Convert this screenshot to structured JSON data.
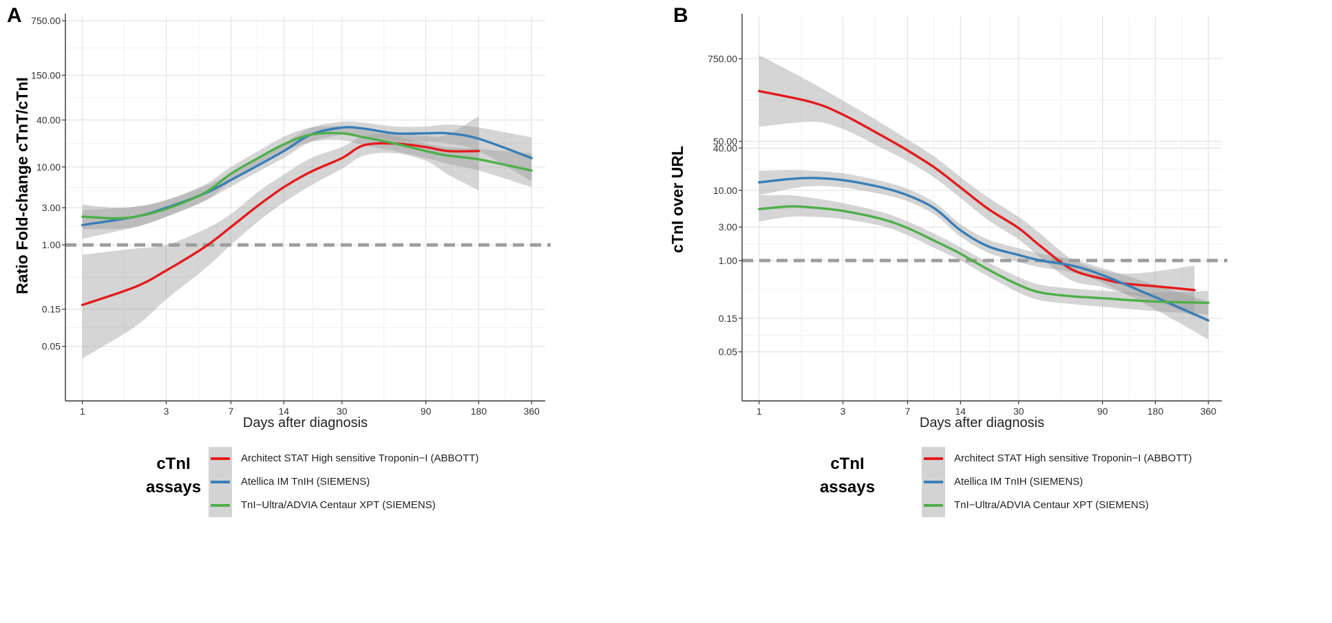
{
  "chart_data": [
    {
      "panel": "A",
      "type": "line",
      "ylabel": "Ratio Fold-change cTnT/cTnI",
      "xlabel": "Days after diagnosis",
      "x_scale": "log",
      "y_scale": "log",
      "x_ticks": [
        1,
        3,
        7,
        14,
        30,
        90,
        180,
        360
      ],
      "x_tick_labels": [
        "1",
        "3",
        "7",
        "14",
        "30",
        "90",
        "180",
        "360"
      ],
      "y_ticks": [
        0.05,
        0.15,
        1,
        3,
        10,
        40,
        150,
        750
      ],
      "y_tick_labels": [
        "0.05",
        "0.15",
        "1.00",
        "3.00",
        "10.00",
        "40.00",
        "150.00",
        "750.00"
      ],
      "xlim": [
        0.8,
        430
      ],
      "ylim": [
        0.01,
        850
      ],
      "reference_line": 1,
      "grid": true,
      "series": [
        {
          "name": "Architect STAT High sensitive Troponin−I (ABBOTT)",
          "color": "#e41a1c",
          "x": [
            1,
            2,
            3,
            5,
            7,
            10,
            14,
            20,
            30,
            40,
            60,
            90,
            120,
            180
          ],
          "y": [
            0.17,
            0.29,
            0.47,
            0.95,
            1.7,
            3.2,
            5.5,
            8.7,
            13,
            19,
            20,
            18,
            16,
            16
          ],
          "band": [
            [
              0.035,
              0.75
            ],
            [
              0.09,
              0.9
            ],
            [
              0.2,
              1.0
            ],
            [
              0.5,
              1.6
            ],
            [
              1.0,
              2.5
            ],
            [
              2.0,
              4.8
            ],
            [
              3.5,
              8.0
            ],
            [
              5.8,
              13
            ],
            [
              9.5,
              18
            ],
            [
              14,
              25
            ],
            [
              15,
              27
            ],
            [
              12,
              25
            ],
            [
              8,
              26
            ],
            [
              5,
              45
            ]
          ]
        },
        {
          "name": "Atellica IM TnIH (SIEMENS)",
          "color": "#377eb8",
          "x": [
            1,
            2,
            3,
            5,
            7,
            10,
            14,
            20,
            30,
            40,
            60,
            90,
            120,
            180,
            360
          ],
          "y": [
            1.8,
            2.3,
            3.0,
            4.6,
            6.8,
            10.5,
            16,
            26,
            32,
            31,
            27,
            27,
            27,
            23,
            13
          ],
          "band": [
            [
              1.2,
              2.8
            ],
            [
              1.7,
              3.1
            ],
            [
              2.3,
              3.8
            ],
            [
              3.7,
              5.7
            ],
            [
              5.6,
              8.3
            ],
            [
              8.7,
              13
            ],
            [
              13,
              20
            ],
            [
              21,
              32
            ],
            [
              26,
              38
            ],
            [
              25,
              37
            ],
            [
              22,
              33
            ],
            [
              21,
              33
            ],
            [
              20,
              35
            ],
            [
              16,
              32
            ],
            [
              6.5,
              24
            ]
          ]
        },
        {
          "name": "TnI−Ultra/ADVIA Centaur XPT (SIEMENS)",
          "color": "#4daf4a",
          "x": [
            1,
            1.5,
            2,
            3,
            5,
            7,
            10,
            14,
            20,
            30,
            40,
            60,
            90,
            120,
            180,
            360
          ],
          "y": [
            2.3,
            2.2,
            2.3,
            2.9,
            4.7,
            8.2,
            13,
            19.5,
            26,
            27,
            24,
            20,
            16,
            14,
            12.5,
            9
          ],
          "band": [
            [
              1.6,
              3.3
            ],
            [
              1.6,
              3.0
            ],
            [
              1.7,
              3.1
            ],
            [
              2.3,
              3.7
            ],
            [
              3.7,
              6.0
            ],
            [
              6.5,
              10
            ],
            [
              10.5,
              16
            ],
            [
              15.5,
              24.5
            ],
            [
              21,
              32
            ],
            [
              22,
              33
            ],
            [
              19,
              30
            ],
            [
              16,
              25
            ],
            [
              13,
              20
            ],
            [
              11,
              18
            ],
            [
              9,
              17
            ],
            [
              5.5,
              15
            ]
          ]
        }
      ]
    },
    {
      "panel": "B",
      "type": "line",
      "ylabel": "cTnI over URL",
      "xlabel": "Days after diagnosis",
      "x_scale": "log",
      "y_scale": "log",
      "x_ticks": [
        1,
        3,
        7,
        14,
        30,
        90,
        180,
        360
      ],
      "x_tick_labels": [
        "1",
        "3",
        "7",
        "14",
        "30",
        "90",
        "180",
        "360"
      ],
      "y_ticks": [
        0.05,
        0.15,
        1,
        3,
        10,
        40,
        50,
        750
      ],
      "y_tick_labels": [
        "0.05",
        "0.15",
        "1.00",
        "3.00",
        "10.00",
        "40.00",
        "50.00",
        "750.00"
      ],
      "xlim": [
        0.8,
        430
      ],
      "ylim": [
        0.01,
        3000
      ],
      "reference_line": 1,
      "grid": true,
      "series": [
        {
          "name": "Architect STAT High sensitive Troponin−I (ABBOTT)",
          "color": "#e41a1c",
          "x": [
            1,
            2,
            3,
            5,
            7,
            10,
            14,
            20,
            30,
            40,
            60,
            90,
            120,
            180,
            300
          ],
          "y": [
            260,
            180,
            120,
            60,
            37,
            21,
            11,
            5.5,
            2.9,
            1.6,
            0.75,
            0.55,
            0.47,
            0.43,
            0.38
          ],
          "band": [
            [
              80,
              850
            ],
            [
              95,
              340
            ],
            [
              75,
              190
            ],
            [
              40,
              90
            ],
            [
              26,
              53
            ],
            [
              15,
              30
            ],
            [
              7.8,
              15.5
            ],
            [
              3.8,
              8.0
            ],
            [
              2.0,
              4.2
            ],
            [
              1.1,
              2.4
            ],
            [
              0.52,
              1.05
            ],
            [
              0.42,
              0.72
            ],
            [
              0.34,
              0.65
            ],
            [
              0.27,
              0.7
            ],
            [
              0.16,
              0.85
            ]
          ]
        },
        {
          "name": "Atellica IM TnIH (SIEMENS)",
          "color": "#377eb8",
          "x": [
            1,
            1.5,
            2,
            3,
            5,
            7,
            10,
            14,
            20,
            30,
            40,
            60,
            90,
            180,
            360
          ],
          "y": [
            13,
            14.5,
            15,
            14,
            11,
            8.5,
            5.5,
            2.7,
            1.6,
            1.2,
            1.0,
            0.85,
            0.62,
            0.3,
            0.14
          ],
          "band": [
            [
              8.5,
              19
            ],
            [
              10.5,
              19.5
            ],
            [
              11.5,
              19
            ],
            [
              11,
              17.5
            ],
            [
              8.8,
              13.5
            ],
            [
              7,
              10.5
            ],
            [
              4.5,
              6.7
            ],
            [
              2.2,
              3.3
            ],
            [
              1.3,
              2.0
            ],
            [
              0.95,
              1.5
            ],
            [
              0.8,
              1.25
            ],
            [
              0.68,
              1.05
            ],
            [
              0.48,
              0.78
            ],
            [
              0.2,
              0.45
            ],
            [
              0.075,
              0.26
            ]
          ]
        },
        {
          "name": "TnI−Ultra/ADVIA Centaur XPT (SIEMENS)",
          "color": "#4daf4a",
          "x": [
            1,
            1.5,
            2,
            3,
            5,
            7,
            10,
            14,
            20,
            30,
            40,
            60,
            90,
            180,
            360
          ],
          "y": [
            5.4,
            5.9,
            5.7,
            5.1,
            3.9,
            2.9,
            1.9,
            1.25,
            0.75,
            0.45,
            0.35,
            0.31,
            0.29,
            0.26,
            0.25
          ],
          "band": [
            [
              3.6,
              8.5
            ],
            [
              4.2,
              8.5
            ],
            [
              4.2,
              7.8
            ],
            [
              3.9,
              6.6
            ],
            [
              3.1,
              4.9
            ],
            [
              2.3,
              3.6
            ],
            [
              1.5,
              2.4
            ],
            [
              1.0,
              1.55
            ],
            [
              0.6,
              0.95
            ],
            [
              0.35,
              0.58
            ],
            [
              0.27,
              0.45
            ],
            [
              0.24,
              0.4
            ],
            [
              0.22,
              0.37
            ],
            [
              0.19,
              0.35
            ],
            [
              0.17,
              0.37
            ]
          ]
        }
      ]
    }
  ],
  "panels": [
    {
      "letter": "A",
      "ylabel": "Ratio Fold-change cTnT/cTnI",
      "xlabel": "Days after diagnosis"
    },
    {
      "letter": "B",
      "ylabel": "cTnI over URL",
      "xlabel": "Days after diagnosis"
    }
  ],
  "legend": {
    "title_line1": "cTnI",
    "title_line2": "assays",
    "items": [
      {
        "label": "Architect STAT High sensitive Troponin−I (ABBOTT)",
        "color": "#e41a1c"
      },
      {
        "label": "Atellica IM TnIH (SIEMENS)",
        "color": "#377eb8"
      },
      {
        "label": "TnI−Ultra/ADVIA Centaur XPT (SIEMENS)",
        "color": "#4daf4a"
      }
    ]
  }
}
